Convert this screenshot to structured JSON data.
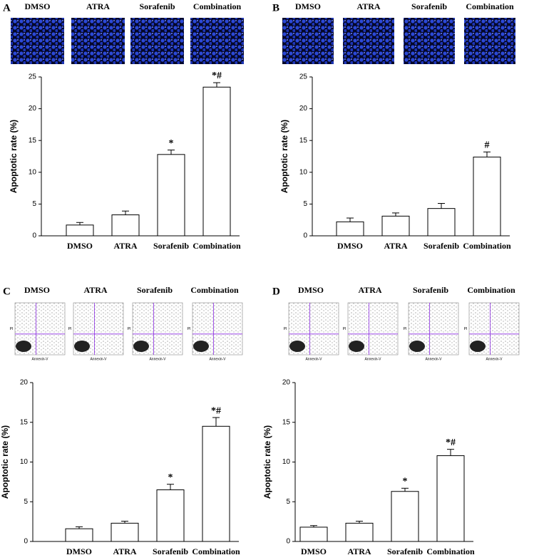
{
  "chart_data": [
    {
      "type": "bar",
      "panel": "A",
      "image_kind": "fluorescence",
      "ylabel": "Apoptotic rate (%)",
      "categories": [
        "DMSO",
        "ATRA",
        "Sorafenib",
        "Combination"
      ],
      "values": [
        1.7,
        3.3,
        12.8,
        23.4
      ],
      "errors": [
        0.4,
        0.6,
        0.7,
        0.7
      ],
      "annotations": [
        null,
        null,
        "*",
        "*#"
      ],
      "color": "#ffffff",
      "ylim": [
        0,
        25
      ],
      "yticks": [
        0,
        5,
        10,
        15,
        20,
        25
      ]
    },
    {
      "type": "bar",
      "panel": "B",
      "image_kind": "fluorescence",
      "ylabel": "Apoptotic rate (%)",
      "categories": [
        "DMSO",
        "ATRA",
        "Sorafenib",
        "Combination"
      ],
      "values": [
        2.2,
        3.1,
        4.3,
        12.4
      ],
      "errors": [
        0.6,
        0.5,
        0.8,
        0.8
      ],
      "annotations": [
        null,
        null,
        null,
        "#"
      ],
      "color": "#ffffff",
      "ylim": [
        0,
        25
      ],
      "yticks": [
        0,
        5,
        10,
        15,
        20,
        25
      ]
    },
    {
      "type": "bar",
      "panel": "C",
      "image_kind": "flow",
      "flow_xlabel": "Annexin-V",
      "flow_ylabel": "PI",
      "ylabel": "Apoptotic rate (%)",
      "categories": [
        "DMSO",
        "ATRA",
        "Sorafenib",
        "Combination"
      ],
      "values": [
        1.6,
        2.3,
        6.5,
        14.5
      ],
      "errors": [
        0.25,
        0.25,
        0.7,
        1.1
      ],
      "annotations": [
        null,
        null,
        "*",
        "*#"
      ],
      "color": "#ffffff",
      "ylim": [
        0,
        20
      ],
      "yticks": [
        0,
        5,
        10,
        15,
        20
      ]
    },
    {
      "type": "bar",
      "panel": "D",
      "image_kind": "flow",
      "flow_xlabel": "Annexin-V",
      "flow_ylabel": "PI",
      "ylabel": "Apoptotic rate (%)",
      "categories": [
        "DMSO",
        "ATRA",
        "Sorafenib",
        "Combination"
      ],
      "values": [
        1.8,
        2.3,
        6.3,
        10.8
      ],
      "errors": [
        0.2,
        0.25,
        0.4,
        0.8
      ],
      "annotations": [
        null,
        null,
        "*",
        "*#"
      ],
      "color": "#ffffff",
      "ylim": [
        0,
        20
      ],
      "yticks": [
        0,
        5,
        10,
        15,
        20
      ]
    }
  ]
}
